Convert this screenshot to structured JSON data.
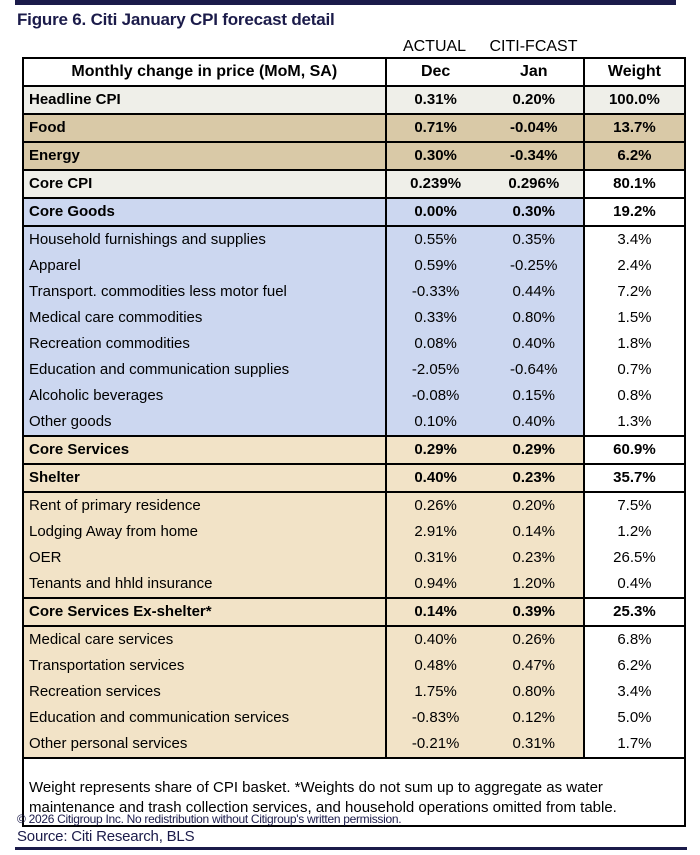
{
  "title": "Figure 6. Citi January CPI forecast detail",
  "table": {
    "group_headers": [
      {
        "label": "ACTUAL"
      },
      {
        "label": "CITI-FCAST"
      }
    ],
    "columns": [
      "Monthly change in price (MoM, SA)",
      "Dec",
      "Jan",
      "Weight"
    ],
    "rows": [
      {
        "label": "Headline CPI",
        "dec": "0.31%",
        "jan": "0.20%",
        "weight": "100.0%",
        "cls": "bold gray"
      },
      {
        "label": "Food",
        "dec": "0.71%",
        "jan": "-0.04%",
        "weight": "13.7%",
        "cls": "bold tan"
      },
      {
        "label": "Energy",
        "dec": "0.30%",
        "jan": "-0.34%",
        "weight": "6.2%",
        "cls": "bold tan"
      },
      {
        "label": "Core CPI",
        "dec": "0.239%",
        "jan": "0.296%",
        "weight": "80.1%",
        "cls": "bold gray wwhite"
      },
      {
        "label": "Core Goods",
        "dec": "0.00%",
        "jan": "0.30%",
        "weight": "19.2%",
        "cls": "bold blue wwhite"
      },
      {
        "label": "Household furnishings and supplies",
        "dec": "0.55%",
        "jan": "0.35%",
        "weight": "3.4%",
        "cls": "blue wwhite"
      },
      {
        "label": "Apparel",
        "dec": "0.59%",
        "jan": "-0.25%",
        "weight": "2.4%",
        "cls": "blue wwhite"
      },
      {
        "label": "Transport. commodities less motor fuel",
        "dec": "-0.33%",
        "jan": "0.44%",
        "weight": "7.2%",
        "cls": "blue wwhite"
      },
      {
        "label": "Medical care commodities",
        "dec": "0.33%",
        "jan": "0.80%",
        "weight": "1.5%",
        "cls": "blue wwhite"
      },
      {
        "label": "Recreation commodities",
        "dec": "0.08%",
        "jan": "0.40%",
        "weight": "1.8%",
        "cls": "blue wwhite"
      },
      {
        "label": "Education and communication supplies",
        "dec": "-2.05%",
        "jan": "-0.64%",
        "weight": "0.7%",
        "cls": "blue wwhite"
      },
      {
        "label": "Alcoholic beverages",
        "dec": "-0.08%",
        "jan": "0.15%",
        "weight": "0.8%",
        "cls": "blue wwhite"
      },
      {
        "label": "Other goods",
        "dec": "0.10%",
        "jan": "0.40%",
        "weight": "1.3%",
        "cls": "blue wwhite"
      },
      {
        "label": "Core Services",
        "dec": "0.29%",
        "jan": "0.29%",
        "weight": "60.9%",
        "cls": "bold peach wwhite"
      },
      {
        "label": "Shelter",
        "dec": "0.40%",
        "jan": "0.23%",
        "weight": "35.7%",
        "cls": "bold peach wwhite"
      },
      {
        "label": "Rent of primary residence",
        "dec": "0.26%",
        "jan": "0.20%",
        "weight": "7.5%",
        "cls": "peach wwhite"
      },
      {
        "label": "Lodging Away from home",
        "dec": "2.91%",
        "jan": "0.14%",
        "weight": "1.2%",
        "cls": "peach wwhite"
      },
      {
        "label": "OER",
        "dec": "0.31%",
        "jan": "0.23%",
        "weight": "26.5%",
        "cls": "peach wwhite"
      },
      {
        "label": "Tenants and hhld insurance",
        "dec": "0.94%",
        "jan": "1.20%",
        "weight": "0.4%",
        "cls": "peach wwhite"
      },
      {
        "label": "Core Services Ex-shelter*",
        "dec": "0.14%",
        "jan": "0.39%",
        "weight": "25.3%",
        "cls": "bold peach wwhite"
      },
      {
        "label": "Medical care services",
        "dec": "0.40%",
        "jan": "0.26%",
        "weight": "6.8%",
        "cls": "peach wwhite"
      },
      {
        "label": "Transportation services",
        "dec": "0.48%",
        "jan": "0.47%",
        "weight": "6.2%",
        "cls": "peach wwhite"
      },
      {
        "label": "Recreation services",
        "dec": "1.75%",
        "jan": "0.80%",
        "weight": "3.4%",
        "cls": "peach wwhite"
      },
      {
        "label": "Education and communication services",
        "dec": "-0.83%",
        "jan": "0.12%",
        "weight": "5.0%",
        "cls": "peach wwhite"
      },
      {
        "label": "Other personal services",
        "dec": "-0.21%",
        "jan": "0.31%",
        "weight": "1.7%",
        "cls": "peach wwhite"
      }
    ]
  },
  "footnote": "Weight represents share of CPI basket. *Weights do not sum up to aggregate as water maintenance and trash collection services, and household operations omitted from table.",
  "copyright": "© 2026 Citigroup Inc. No redistribution without Citigroup's written permission.",
  "source": "Source: Citi Research, BLS",
  "colors": {
    "navy": "#1b1b4a",
    "row_gray": "#efefe9",
    "row_tan": "#d9c9a7",
    "row_blue": "#ccd7f0",
    "row_peach": "#f2e3c7",
    "border": "#000000"
  }
}
